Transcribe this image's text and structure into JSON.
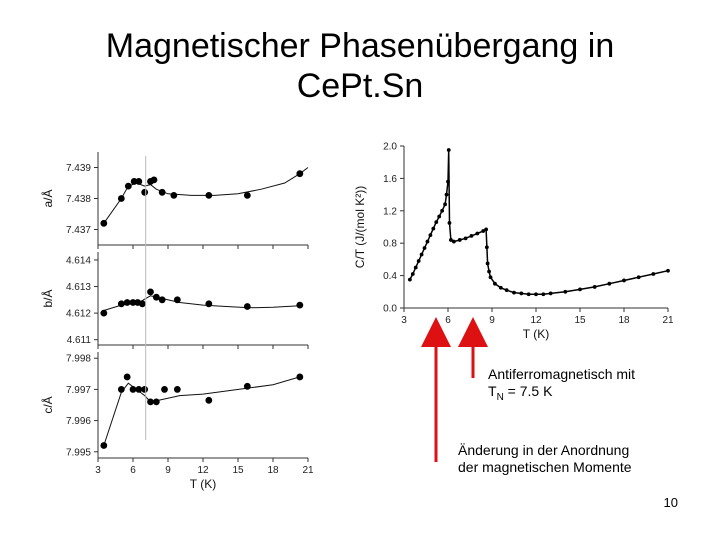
{
  "slide": {
    "title_line1": "Magnetischer Phasenübergang in",
    "title_line2": "CePt.Sn",
    "page_number": "10"
  },
  "annotations": {
    "antiferro_line1": "Antiferromagnetisch mit",
    "antiferro_line2_pre": "T",
    "antiferro_line2_sub": "N",
    "antiferro_line2_post": " = 7.5 K",
    "change_line1": "Änderung in der Anordnung",
    "change_line2": "der magnetischen Momente",
    "arrow_color": "#dd1111"
  },
  "chart_data": [
    {
      "id": "lattice-a",
      "type": "scatter",
      "ylabel": "a/Å",
      "xlim": [
        3,
        21
      ],
      "ylim": [
        7.4365,
        7.4395
      ],
      "xticks": [
        3,
        6,
        9,
        12,
        15,
        18,
        21
      ],
      "yticks": [
        7.437,
        7.438,
        7.439
      ],
      "ytick_labels": [
        "7.437",
        "7.438",
        "7.439"
      ],
      "show_xtick_labels": false,
      "points": [
        [
          3.5,
          7.4372
        ],
        [
          5.0,
          7.438
        ],
        [
          5.6,
          7.4384
        ],
        [
          6.1,
          7.43855
        ],
        [
          6.5,
          7.43855
        ],
        [
          7.0,
          7.4382
        ],
        [
          7.5,
          7.43855
        ],
        [
          7.8,
          7.4386
        ],
        [
          8.5,
          7.4382
        ],
        [
          9.5,
          7.4381
        ],
        [
          12.5,
          7.4381
        ],
        [
          15.8,
          7.4381
        ],
        [
          20.3,
          7.4388
        ]
      ],
      "fit_curve": [
        [
          3.5,
          7.4372
        ],
        [
          5.0,
          7.438
        ],
        [
          5.6,
          7.4384
        ],
        [
          6.3,
          7.4385
        ],
        [
          7.0,
          7.4384
        ],
        [
          7.5,
          7.43845
        ],
        [
          8.0,
          7.4383
        ],
        [
          9.0,
          7.43815
        ],
        [
          11.0,
          7.4381
        ],
        [
          13.0,
          7.4381
        ],
        [
          15.0,
          7.43815
        ],
        [
          17.0,
          7.4383
        ],
        [
          19.0,
          7.4385
        ],
        [
          20.3,
          7.4388
        ],
        [
          21.0,
          7.439
        ]
      ]
    },
    {
      "id": "lattice-b",
      "type": "scatter",
      "ylabel": "b/Å",
      "xlim": [
        3,
        21
      ],
      "ylim": [
        4.6108,
        4.6143
      ],
      "xticks": [
        3,
        6,
        9,
        12,
        15,
        18,
        21
      ],
      "yticks": [
        4.611,
        4.612,
        4.613,
        4.614
      ],
      "ytick_labels": [
        "4.611",
        "4.612",
        "4.613",
        "4.614"
      ],
      "show_xtick_labels": false,
      "points": [
        [
          3.5,
          4.612
        ],
        [
          5.0,
          4.61235
        ],
        [
          5.5,
          4.6124
        ],
        [
          6.0,
          4.6124
        ],
        [
          6.4,
          4.6124
        ],
        [
          6.8,
          4.61235
        ],
        [
          7.5,
          4.6128
        ],
        [
          8.0,
          4.6126
        ],
        [
          8.5,
          4.6125
        ],
        [
          9.8,
          4.6125
        ],
        [
          12.5,
          4.61235
        ],
        [
          15.8,
          4.61225
        ],
        [
          20.3,
          4.6123
        ]
      ],
      "fit_curve": [
        [
          3.5,
          4.6121
        ],
        [
          5.0,
          4.6123
        ],
        [
          6.5,
          4.6124
        ],
        [
          7.5,
          4.61265
        ],
        [
          8.5,
          4.61255
        ],
        [
          10.0,
          4.6124
        ],
        [
          12.0,
          4.6123
        ],
        [
          14.0,
          4.61225
        ],
        [
          16.0,
          4.6122
        ],
        [
          18.0,
          4.61222
        ],
        [
          20.3,
          4.61228
        ]
      ]
    },
    {
      "id": "lattice-c",
      "type": "scatter",
      "ylabel": "c/Å",
      "xlim": [
        3,
        21
      ],
      "ylim": [
        7.9948,
        7.9982
      ],
      "xticks": [
        3,
        6,
        9,
        12,
        15,
        18,
        21
      ],
      "xtick_labels": [
        "3",
        "6",
        "9",
        "12",
        "15",
        "18",
        "21"
      ],
      "yticks": [
        7.995,
        7.996,
        7.997,
        7.998
      ],
      "ytick_labels": [
        "7.995",
        "7.996",
        "7.997",
        "7.998"
      ],
      "xlabel": "T (K)",
      "show_xtick_labels": true,
      "points": [
        [
          3.5,
          7.9952
        ],
        [
          5.0,
          7.997
        ],
        [
          5.5,
          7.9974
        ],
        [
          6.0,
          7.997
        ],
        [
          6.5,
          7.997
        ],
        [
          7.0,
          7.997
        ],
        [
          7.5,
          7.9966
        ],
        [
          8.0,
          7.9966
        ],
        [
          8.7,
          7.997
        ],
        [
          9.8,
          7.997
        ],
        [
          12.5,
          7.99665
        ],
        [
          15.8,
          7.9971
        ],
        [
          20.3,
          7.9974
        ]
      ],
      "fit_curve": [
        [
          3.5,
          7.9952
        ],
        [
          5.0,
          7.9969
        ],
        [
          5.6,
          7.9972
        ],
        [
          6.3,
          7.997
        ],
        [
          7.0,
          7.9968
        ],
        [
          7.5,
          7.9966
        ],
        [
          8.2,
          7.99665
        ],
        [
          10.0,
          7.9968
        ],
        [
          12.0,
          7.99685
        ],
        [
          14.0,
          7.99695
        ],
        [
          16.0,
          7.99705
        ],
        [
          18.0,
          7.99715
        ],
        [
          20.3,
          7.9974
        ]
      ]
    },
    {
      "id": "specific-heat",
      "type": "line",
      "ylabel": "C/T (J/(mol K²))",
      "xlabel": "T (K)",
      "xlim": [
        3,
        21
      ],
      "ylim": [
        0,
        2.0
      ],
      "xticks": [
        3,
        6,
        9,
        12,
        15,
        18,
        21
      ],
      "xtick_labels": [
        "3",
        "6",
        "9",
        "12",
        "15",
        "18",
        "21"
      ],
      "yticks": [
        0,
        0.4,
        0.8,
        1.2,
        1.6,
        2.0
      ],
      "ytick_labels": [
        "0.0",
        "0.4",
        "0.8",
        "1.2",
        "1.6",
        "2.0"
      ],
      "series": [
        {
          "points": [
            [
              3.4,
              0.35
            ],
            [
              3.6,
              0.42
            ],
            [
              3.8,
              0.5
            ],
            [
              4.0,
              0.58
            ],
            [
              4.2,
              0.66
            ],
            [
              4.4,
              0.74
            ],
            [
              4.6,
              0.82
            ],
            [
              4.8,
              0.9
            ],
            [
              5.0,
              0.98
            ],
            [
              5.2,
              1.06
            ],
            [
              5.4,
              1.13
            ],
            [
              5.6,
              1.2
            ],
            [
              5.8,
              1.28
            ],
            [
              5.9,
              1.4
            ],
            [
              6.0,
              1.56
            ],
            [
              6.05,
              1.95
            ],
            [
              6.1,
              1.05
            ],
            [
              6.2,
              0.84
            ],
            [
              6.4,
              0.82
            ],
            [
              6.8,
              0.84
            ],
            [
              7.2,
              0.86
            ],
            [
              7.6,
              0.89
            ],
            [
              8.0,
              0.92
            ],
            [
              8.4,
              0.95
            ],
            [
              8.6,
              0.97
            ],
            [
              8.65,
              0.75
            ],
            [
              8.7,
              0.55
            ],
            [
              8.8,
              0.45
            ],
            [
              8.9,
              0.38
            ],
            [
              9.2,
              0.3
            ],
            [
              9.6,
              0.25
            ],
            [
              10.0,
              0.22
            ],
            [
              10.5,
              0.19
            ],
            [
              11.0,
              0.18
            ],
            [
              11.5,
              0.17
            ],
            [
              12.0,
              0.17
            ],
            [
              12.5,
              0.17
            ],
            [
              13.0,
              0.18
            ],
            [
              14.0,
              0.2
            ],
            [
              15.0,
              0.23
            ],
            [
              16.0,
              0.26
            ],
            [
              17.0,
              0.3
            ],
            [
              18.0,
              0.34
            ],
            [
              19.0,
              0.38
            ],
            [
              20.0,
              0.42
            ],
            [
              21.0,
              0.46
            ]
          ]
        }
      ]
    }
  ]
}
